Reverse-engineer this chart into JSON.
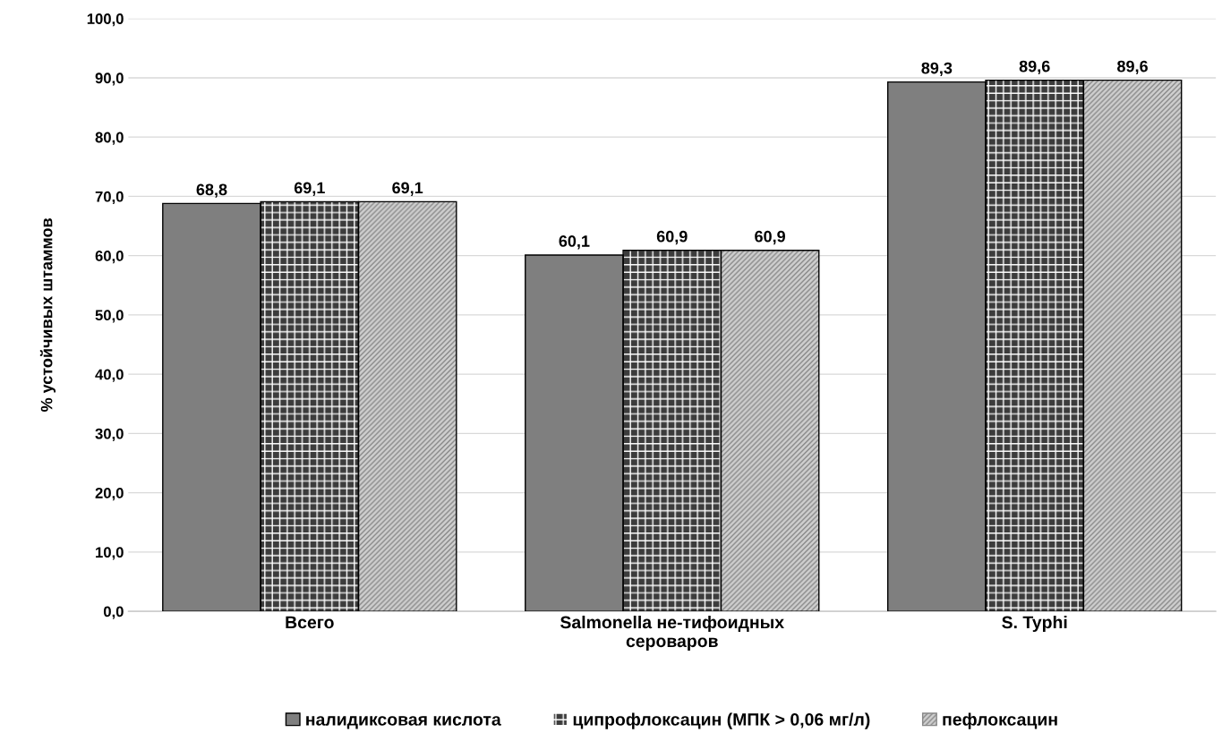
{
  "chart_data": {
    "type": "bar",
    "ylabel": "% устойчивых штаммов",
    "categories": [
      "Всего",
      "Salmonella не-тифоидных\nсероваров",
      "S. Typhi"
    ],
    "series": [
      {
        "name": "налидиксовая кислота",
        "color": "#7f7f7f",
        "values": [
          68.8,
          60.1,
          89.3
        ],
        "value_labels": [
          "68,8",
          "60,1",
          "89,3"
        ]
      },
      {
        "name": "ципрофлоксацин (МПК > 0,06 мг/л)",
        "color": "#3c3c3c",
        "values": [
          69.1,
          60.9,
          89.6
        ],
        "value_labels": [
          "69,1",
          "60,9",
          "89,6"
        ]
      },
      {
        "name": "пефлоксацин",
        "color": "#cfcfcf",
        "values": [
          69.1,
          60.9,
          89.6
        ],
        "value_labels": [
          "69,1",
          "60,9",
          "89,6"
        ]
      }
    ],
    "ylim": [
      0,
      100
    ],
    "yticks": [
      {
        "value": 0,
        "label": "0,0"
      },
      {
        "value": 10,
        "label": "10,0"
      },
      {
        "value": 20,
        "label": "20,0"
      },
      {
        "value": 30,
        "label": "30,0"
      },
      {
        "value": 40,
        "label": "40,0"
      },
      {
        "value": 50,
        "label": "50,0"
      },
      {
        "value": 60,
        "label": "60,0"
      },
      {
        "value": 70,
        "label": "70,0"
      },
      {
        "value": 80,
        "label": "80,0"
      },
      {
        "value": 90,
        "label": "90,0"
      },
      {
        "value": 100,
        "label": "100,0"
      }
    ],
    "grid": "y",
    "legend": "bottom"
  }
}
